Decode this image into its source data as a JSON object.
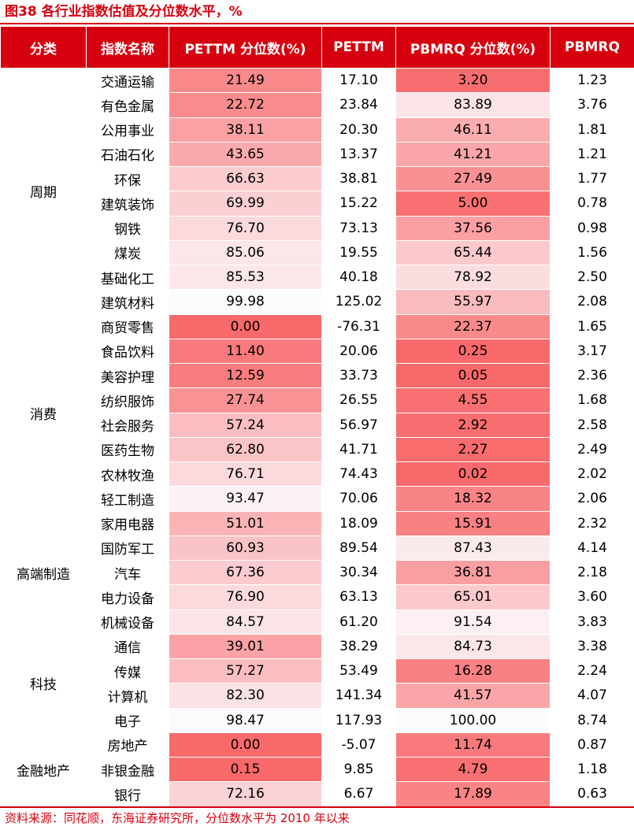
{
  "title": "图38 各行业指数估值及分位数水平，%",
  "headers": [
    "分类",
    "指数名称",
    "PETTM 分位数(%)",
    "PETTM",
    "PBMRQ 分位数(%)",
    "PBMRQ"
  ],
  "groups": [
    {
      "category": "周期",
      "rows": [
        [
          "交通运输",
          "21.49",
          "17.10",
          "3.20",
          "1.23"
        ],
        [
          "有色金属",
          "22.72",
          "23.84",
          "83.89",
          "3.76"
        ],
        [
          "公用事业",
          "38.11",
          "20.30",
          "46.11",
          "1.81"
        ],
        [
          "石油石化",
          "43.65",
          "13.37",
          "41.21",
          "1.21"
        ],
        [
          "环保",
          "66.63",
          "38.81",
          "27.49",
          "1.77"
        ],
        [
          "建筑装饰",
          "69.99",
          "15.22",
          "5.00",
          "0.78"
        ],
        [
          "钢铁",
          "76.70",
          "73.13",
          "37.56",
          "0.98"
        ],
        [
          "煤炭",
          "85.06",
          "19.55",
          "65.44",
          "1.56"
        ],
        [
          "基础化工",
          "85.53",
          "40.18",
          "78.92",
          "2.50"
        ],
        [
          "建筑材料",
          "99.98",
          "125.02",
          "55.97",
          "2.08"
        ]
      ]
    },
    {
      "category": "消费",
      "rows": [
        [
          "商贸零售",
          "0.00",
          "-76.31",
          "22.37",
          "1.65"
        ],
        [
          "食品饮料",
          "11.40",
          "20.06",
          "0.25",
          "3.17"
        ],
        [
          "美容护理",
          "12.59",
          "33.73",
          "0.05",
          "2.36"
        ],
        [
          "纺织服饰",
          "27.74",
          "26.55",
          "4.55",
          "1.68"
        ],
        [
          "社会服务",
          "57.24",
          "56.97",
          "2.92",
          "2.58"
        ],
        [
          "医药生物",
          "62.80",
          "41.71",
          "2.27",
          "2.49"
        ],
        [
          "农林牧渔",
          "76.71",
          "74.43",
          "0.02",
          "2.02"
        ],
        [
          "轻工制造",
          "93.47",
          "70.06",
          "18.32",
          "2.06"
        ]
      ]
    },
    {
      "category": "高端制造",
      "rows": [
        [
          "家用电器",
          "51.01",
          "18.09",
          "15.91",
          "2.32"
        ],
        [
          "国防军工",
          "60.93",
          "89.54",
          "87.43",
          "4.14"
        ],
        [
          "汽车",
          "67.36",
          "30.34",
          "36.81",
          "2.18"
        ],
        [
          "电力设备",
          "76.90",
          "63.13",
          "65.01",
          "3.60"
        ],
        [
          "机械设备",
          "84.57",
          "61.20",
          "91.54",
          "3.83"
        ]
      ]
    },
    {
      "category": "科技",
      "rows": [
        [
          "通信",
          "39.01",
          "38.29",
          "84.73",
          "3.38"
        ],
        [
          "传媒",
          "57.27",
          "53.49",
          "16.28",
          "2.24"
        ],
        [
          "计算机",
          "82.30",
          "141.34",
          "41.57",
          "4.07"
        ],
        [
          "电子",
          "98.47",
          "117.93",
          "100.00",
          "8.74"
        ]
      ]
    },
    {
      "category": "金融地产",
      "rows": [
        [
          "房地产",
          "0.00",
          "-5.07",
          "11.74",
          "0.87"
        ],
        [
          "非银金融",
          "0.15",
          "9.85",
          "4.79",
          "1.18"
        ],
        [
          "银行",
          "72.16",
          "6.67",
          "17.89",
          "0.63"
        ]
      ]
    }
  ],
  "source": "资料来源：同花顺，东海证券研究所，分位数水平为 2010 年以来",
  "colors": {
    "accent": "#d7000f",
    "heat_strong": "#f8696b",
    "heat_weak": "#fcfcff",
    "text": "#000000"
  }
}
